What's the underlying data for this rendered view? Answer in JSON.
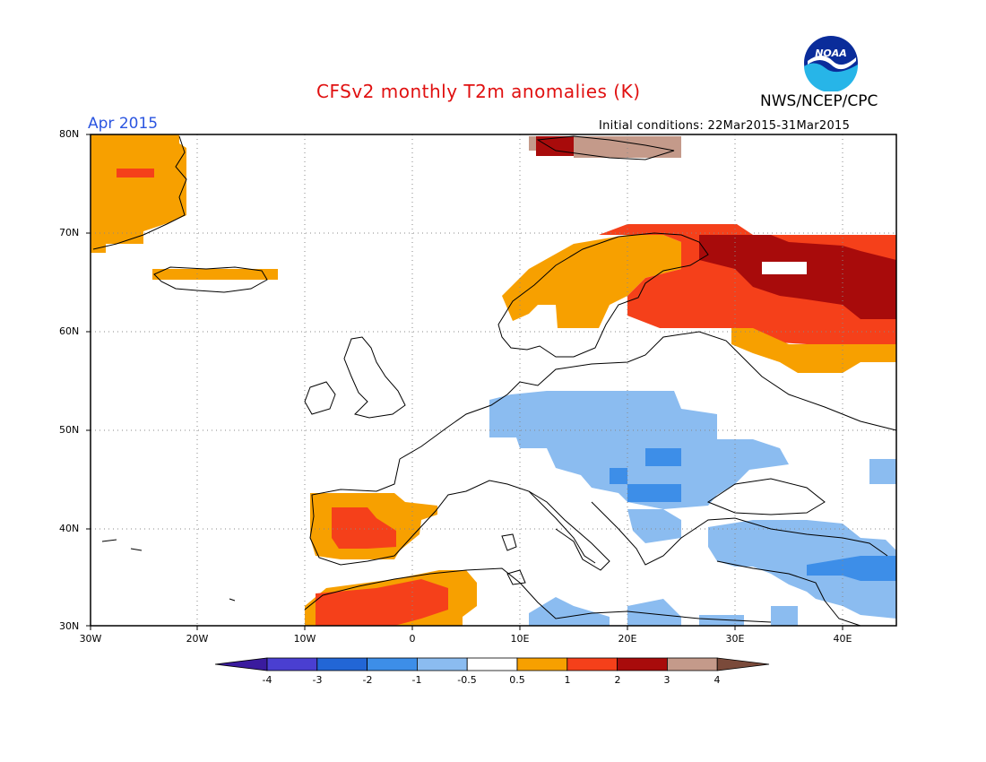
{
  "header": {
    "title": "CFSv2 monthly T2m anomalies (K)",
    "agency": "NWS/NCEP/CPC",
    "valid_month": "Apr 2015",
    "initial_conditions": "Initial conditions: 22Mar2015-31Mar2015",
    "logo_text": "NOAA"
  },
  "map": {
    "region": "Europe",
    "lon_range": [
      -30,
      45
    ],
    "lat_range": [
      30,
      80
    ],
    "lat_labels": [
      "80N",
      "70N",
      "60N",
      "50N",
      "40N",
      "30N"
    ],
    "lon_labels": [
      "30W",
      "20W",
      "10W",
      "0",
      "10E",
      "20E",
      "30E",
      "40E"
    ],
    "gridlines": "dotted every 10 degrees",
    "anomaly_regions": [
      {
        "name": "Greenland (east)",
        "category": "0.5 to 1"
      },
      {
        "name": "Greenland core",
        "category": "1 to 2"
      },
      {
        "name": "Iceland",
        "category": "0.5 to 1"
      },
      {
        "name": "Svalbard",
        "category": "2 to 4"
      },
      {
        "name": "Scandinavia",
        "category": "0.5 to 1"
      },
      {
        "name": "Finland / NW Russia",
        "category": "1 to 2"
      },
      {
        "name": "Kola / Arkhangelsk",
        "category": "2 to 3"
      },
      {
        "name": "Central Russia",
        "category": "0.5 to 1"
      },
      {
        "name": "Iberia",
        "category": "0.5 to 2"
      },
      {
        "name": "NW Africa",
        "category": "0.5 to 2"
      },
      {
        "name": "Central Europe",
        "category": "-1 to -0.5"
      },
      {
        "name": "Balkans",
        "category": "-2 to -0.5"
      },
      {
        "name": "Turkey / Middle East",
        "category": "-2 to -0.5"
      },
      {
        "name": "North Africa (east)",
        "category": "-1 to -0.5"
      }
    ]
  },
  "colorbar": {
    "labels": [
      "-4",
      "-3",
      "-2",
      "-1",
      "-0.5",
      "0.5",
      "1",
      "2",
      "3",
      "4"
    ],
    "colors": [
      "#3a1b9e",
      "#4a3fd1",
      "#2266d6",
      "#3d8ee8",
      "#8bbcf0",
      "#ffffff",
      "#f7a000",
      "#f5401a",
      "#a80b0b",
      "#c49a8a",
      "#7a4a3a"
    ]
  }
}
